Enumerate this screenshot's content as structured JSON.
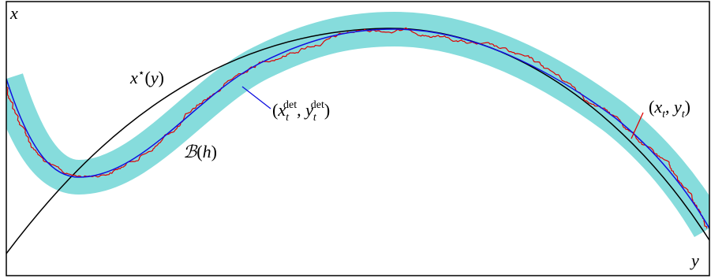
{
  "axes": {
    "x": "x",
    "y": "y"
  },
  "labels": {
    "critical_curve": [
      "x",
      "⋆",
      "(",
      "y",
      ")"
    ],
    "deterministic": [
      "(",
      "x",
      "t",
      "det",
      ", ",
      "y",
      "t",
      "det",
      ")"
    ],
    "band": [
      "ℬ",
      "(",
      "h",
      ")"
    ],
    "stochastic": [
      "(",
      "x",
      "t",
      ", ",
      "y",
      "t",
      ")"
    ]
  }
}
